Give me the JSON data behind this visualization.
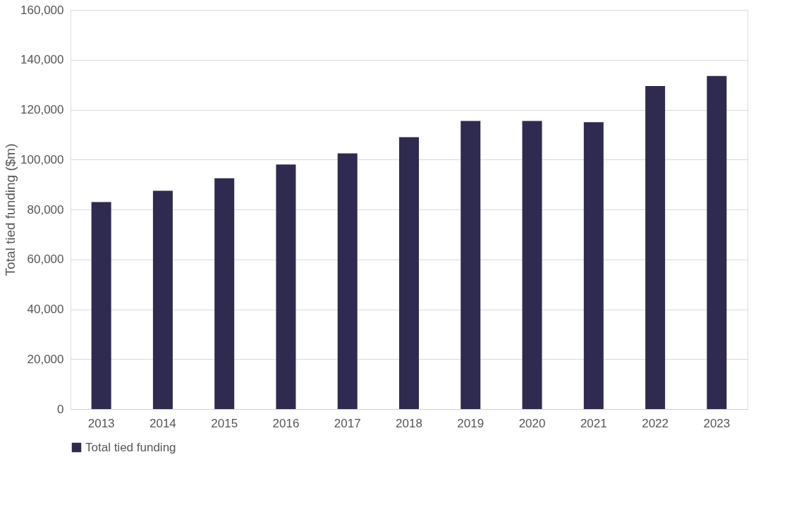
{
  "chart_data": {
    "type": "bar",
    "ylabel": "Total tied funding ($m)",
    "categories": [
      "2013",
      "2014",
      "2015",
      "2016",
      "2017",
      "2018",
      "2019",
      "2020",
      "2021",
      "2022",
      "2023"
    ],
    "series": [
      {
        "name": "Total tied funding",
        "color": "#2e2a50",
        "values": [
          83000,
          87500,
          92500,
          98000,
          102500,
          109000,
          115500,
          115500,
          115000,
          129500,
          133500
        ]
      }
    ],
    "ylim": [
      0,
      160000
    ],
    "yticks": [
      {
        "value": 0,
        "label": "0"
      },
      {
        "value": 20000,
        "label": "20,000"
      },
      {
        "value": 40000,
        "label": "40,000"
      },
      {
        "value": 60000,
        "label": "60,000"
      },
      {
        "value": 80000,
        "label": "80,000"
      },
      {
        "value": 100000,
        "label": "100,000"
      },
      {
        "value": 120000,
        "label": "120,000"
      },
      {
        "value": 140000,
        "label": "140,000"
      },
      {
        "value": 160000,
        "label": "160,000"
      }
    ],
    "grid": "y",
    "legend": "bottom"
  }
}
